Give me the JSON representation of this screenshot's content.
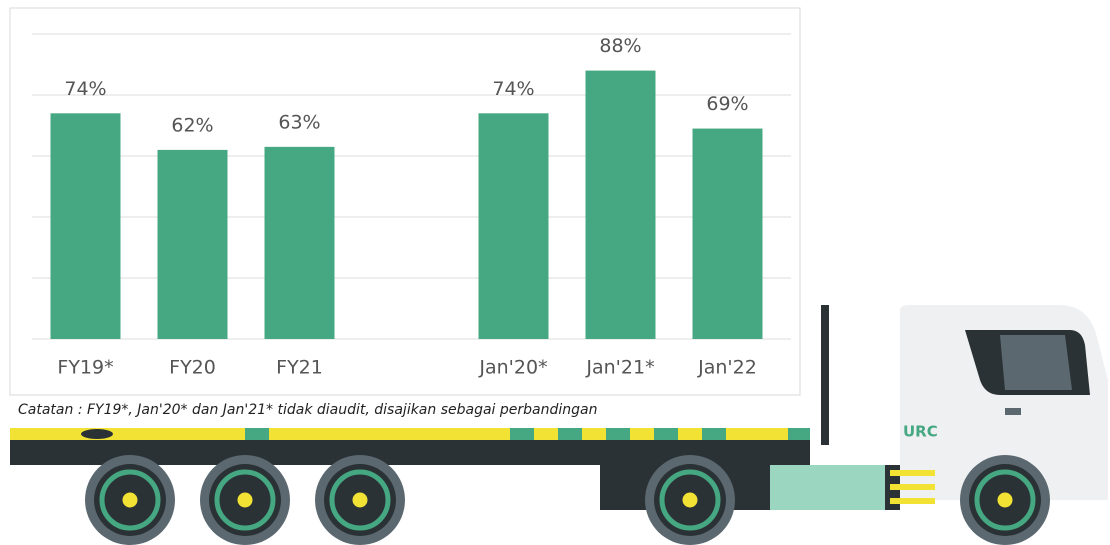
{
  "chart_data": {
    "type": "bar",
    "categories": [
      "FY19*",
      "FY20",
      "FY21",
      null,
      "Jan'20*",
      "Jan'21*",
      "Jan'22"
    ],
    "values": [
      74,
      62,
      63,
      null,
      74,
      88,
      69
    ],
    "value_labels": [
      "74%",
      "62%",
      "63%",
      null,
      "74%",
      "88%",
      "69%"
    ],
    "color": "#46a882",
    "ylim": [
      0,
      100
    ],
    "yticks": [
      0,
      20,
      40,
      60,
      80,
      100
    ],
    "grid": true,
    "annotation": "Catatan : FY19*, Jan'20* dan Jan'21* tidak diaudit, disajikan sebagai perbandingan"
  },
  "logo": "URC"
}
